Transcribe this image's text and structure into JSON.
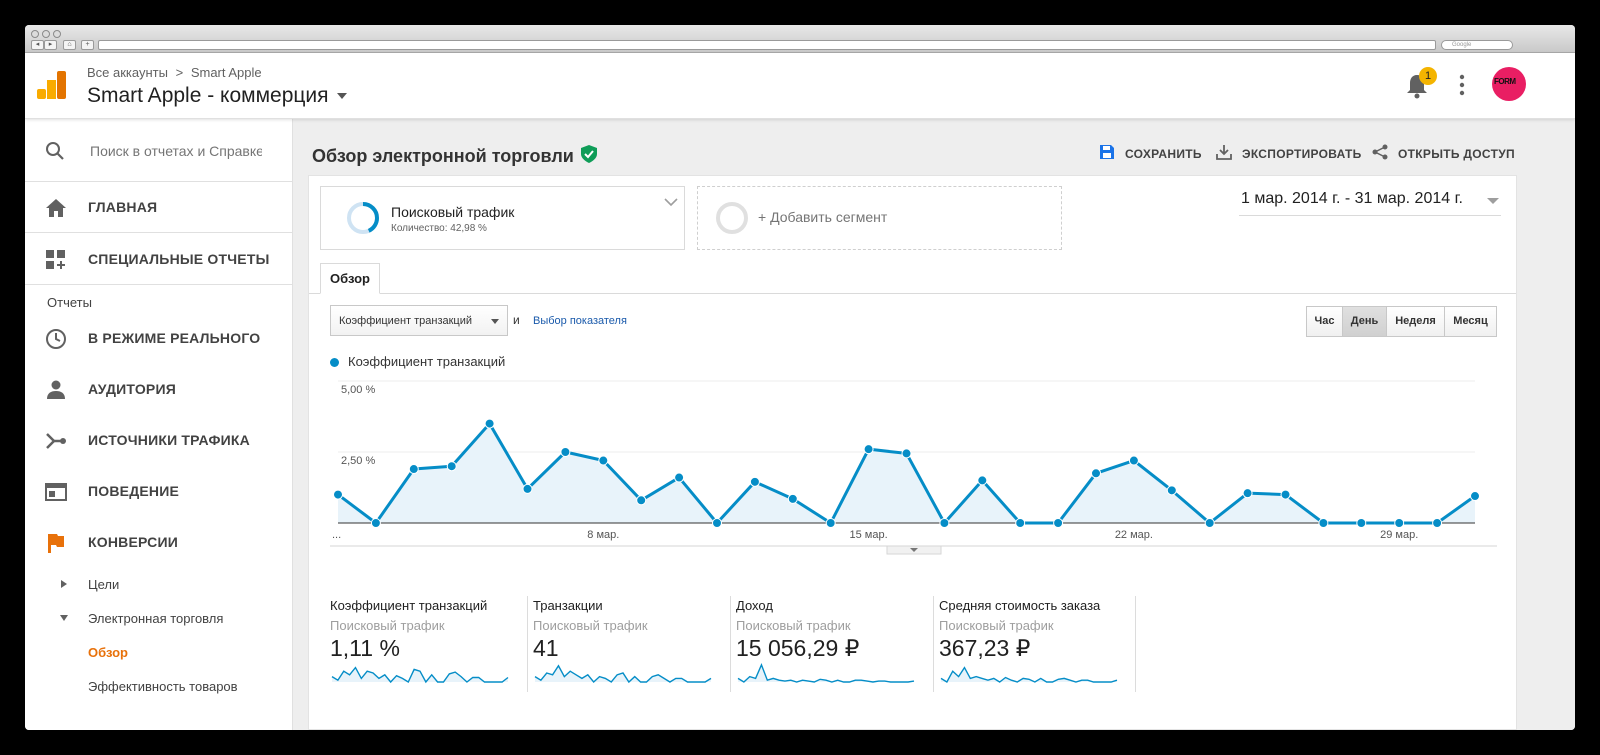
{
  "browser": {
    "search_placeholder": "Google"
  },
  "header": {
    "breadcrumb_root": "Все аккаунты",
    "breadcrumb_sep": ">",
    "breadcrumb_account": "Smart Apple",
    "property_title": "Smart Apple - коммерция",
    "notifications_count": "1",
    "avatar_text": "FORM"
  },
  "sidebar": {
    "search_placeholder": "Поиск в отчетах и Справке",
    "items": [
      {
        "label": "ГЛАВНАЯ",
        "icon": "home-icon"
      },
      {
        "label": "СПЕЦИАЛЬНЫЕ ОТЧЕТЫ",
        "icon": "dashboard-add-icon"
      },
      {
        "label": "В РЕЖИМЕ РЕАЛЬНОГО",
        "icon": "clock-icon"
      },
      {
        "label": "АУДИТОРИЯ",
        "icon": "person-icon"
      },
      {
        "label": "ИСТОЧНИКИ ТРАФИКА",
        "icon": "fork-icon"
      },
      {
        "label": "ПОВЕДЕНИЕ",
        "icon": "window-icon"
      },
      {
        "label": "КОНВЕРСИИ",
        "icon": "flag-icon"
      }
    ],
    "section_label": "Отчеты",
    "sub_items": [
      {
        "label": "Цели"
      },
      {
        "label": "Электронная торговля"
      },
      {
        "label": "Обзор"
      },
      {
        "label": "Эффективность товаров"
      }
    ]
  },
  "main": {
    "title": "Обзор электронной торговли",
    "actions": [
      {
        "label": "СОХРАНИТЬ",
        "icon": "save-icon"
      },
      {
        "label": "ЭКСПОРТИРОВАТЬ",
        "icon": "download-icon"
      },
      {
        "label": "ОТКРЫТЬ ДОСТУП",
        "icon": "share-icon"
      }
    ],
    "segment": {
      "name": "Поисковый трафик",
      "detail": "Количество: 42,98 %"
    },
    "add_segment": "+ Добавить сегмент",
    "date_range": "1 мар. 2014 г. - 31 мар. 2014 г.",
    "tab": "Обзор",
    "metric_select": "Коэффициент транзакций",
    "and_label": "и",
    "pick_metric": "Выбор показателя",
    "granularity": [
      "Час",
      "День",
      "Неделя",
      "Месяц"
    ],
    "granularity_selected": "День",
    "accent": "#058dc7",
    "orange": "#e8710a"
  },
  "chart_data": {
    "type": "area",
    "legend": "Коэффициент транзакций",
    "y_ticks": [
      "5,00 %",
      "2,50 %"
    ],
    "ylim": [
      0,
      5
    ],
    "x_ticks": [
      "...",
      "8 мар.",
      "15 мар.",
      "22 мар.",
      "29 мар."
    ],
    "x_tick_days": [
      1,
      8,
      15,
      22,
      29
    ],
    "days": [
      1,
      2,
      3,
      4,
      5,
      6,
      7,
      8,
      9,
      10,
      11,
      12,
      13,
      14,
      15,
      16,
      17,
      18,
      19,
      20,
      21,
      22,
      23,
      24,
      25,
      26,
      27,
      28,
      29,
      30,
      31
    ],
    "values": [
      1.0,
      0.0,
      1.9,
      2.0,
      3.5,
      1.2,
      2.5,
      2.2,
      0.8,
      1.6,
      0.0,
      1.45,
      0.85,
      0.0,
      2.6,
      2.45,
      0.0,
      1.5,
      0.0,
      0.0,
      1.75,
      2.2,
      1.15,
      0.0,
      1.05,
      1.0,
      0.0,
      0.0,
      0.0,
      0.0,
      0.95
    ]
  },
  "scorecards": [
    {
      "title": "Коэффициент транзакций",
      "segment": "Поисковый трафик",
      "value": "1,11 %",
      "spark": [
        0.3,
        0.1,
        0.6,
        0.4,
        0.8,
        0.2,
        0.6,
        0.5,
        0.2,
        0.4,
        0.0,
        0.35,
        0.2,
        0.0,
        0.7,
        0.6,
        0.0,
        0.4,
        0.0,
        0.0,
        0.45,
        0.55,
        0.3,
        0.0,
        0.25,
        0.25,
        0.0,
        0.0,
        0.0,
        0.0,
        0.25
      ]
    },
    {
      "title": "Транзакции",
      "segment": "Поисковый трафик",
      "value": "41",
      "spark": [
        0.3,
        0.1,
        0.5,
        0.4,
        0.9,
        0.3,
        0.6,
        0.4,
        0.2,
        0.4,
        0.0,
        0.3,
        0.2,
        0.0,
        0.4,
        0.5,
        0.0,
        0.3,
        0.0,
        0.0,
        0.3,
        0.4,
        0.2,
        0.0,
        0.2,
        0.2,
        0.0,
        0.0,
        0.0,
        0.0,
        0.2
      ]
    },
    {
      "title": "Доход",
      "segment": "Поисковый трафик",
      "value": "15 056,29 ₽",
      "spark": [
        0.2,
        0.0,
        0.3,
        0.2,
        0.95,
        0.1,
        0.2,
        0.1,
        0.05,
        0.1,
        0.0,
        0.1,
        0.05,
        0.0,
        0.15,
        0.1,
        0.0,
        0.1,
        0.0,
        0.0,
        0.1,
        0.1,
        0.05,
        0.0,
        0.05,
        0.05,
        0.0,
        0.0,
        0.0,
        0.0,
        0.05
      ]
    },
    {
      "title": "Средняя стоимость заказа",
      "segment": "Поисковый трафик",
      "value": "367,23 ₽",
      "spark": [
        0.2,
        0.0,
        0.6,
        0.3,
        0.8,
        0.2,
        0.3,
        0.2,
        0.1,
        0.2,
        0.0,
        0.25,
        0.1,
        0.0,
        0.2,
        0.15,
        0.0,
        0.2,
        0.0,
        0.0,
        0.15,
        0.2,
        0.1,
        0.0,
        0.1,
        0.1,
        0.0,
        0.0,
        0.0,
        0.0,
        0.1
      ]
    }
  ]
}
